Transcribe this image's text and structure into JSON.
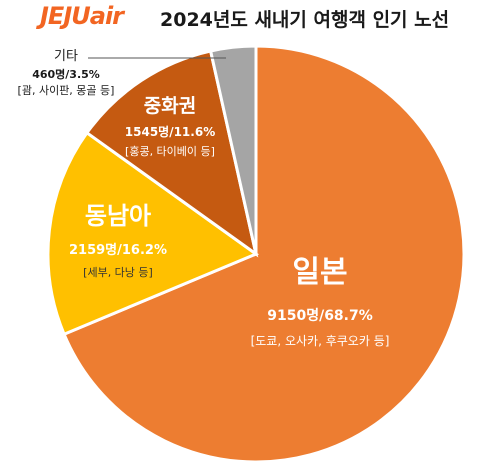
{
  "header": {
    "logo": "JEJUair",
    "title": "2024년도 새내기 여행객 인기 노선"
  },
  "colors": {
    "brand": "#f26522",
    "japan": "#ed7d31",
    "sea": "#ffc000",
    "china": "#c55a11",
    "other": "#a5a5a5"
  },
  "chart_data": {
    "type": "pie",
    "title": "2024년도 새내기 여행객 인기 노선",
    "legend": "none",
    "slices": [
      {
        "name": "일본",
        "count": "9150명",
        "percent": "68.7%",
        "value": 68.7,
        "detail": "[도쿄, 오사카, 후쿠오카 등]",
        "color": "#ed7d31"
      },
      {
        "name": "동남아",
        "count": "2159명",
        "percent": "16.2%",
        "value": 16.2,
        "detail": "[세부, 다낭 등]",
        "color": "#ffc000"
      },
      {
        "name": "중화권",
        "count": "1545명",
        "percent": "11.6%",
        "value": 11.6,
        "detail": "[홍콩, 타이베이 등]",
        "color": "#c55a11"
      },
      {
        "name": "기타",
        "count": "460명",
        "percent": "3.5%",
        "value": 3.5,
        "detail": "[괌, 사이판, 몽골 등]",
        "color": "#a5a5a5"
      }
    ]
  }
}
